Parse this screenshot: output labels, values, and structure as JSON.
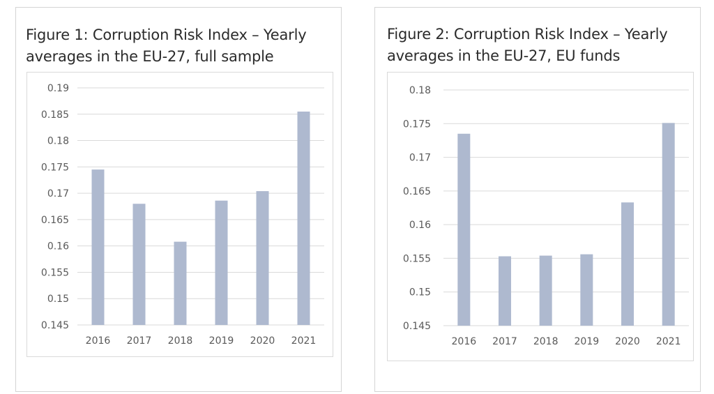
{
  "chart_data": [
    {
      "type": "bar",
      "title": "Figure 1: Corruption Risk Index – Yearly averages in the EU-27, full sample",
      "categories": [
        "2016",
        "2017",
        "2018",
        "2019",
        "2020",
        "2021"
      ],
      "values": [
        0.1745,
        0.168,
        0.1608,
        0.1686,
        0.1704,
        0.1855
      ],
      "ylim": [
        0.145,
        0.19
      ],
      "yticks": [
        "0.19",
        "0.185",
        "0.18",
        "0.175",
        "0.17",
        "0.165",
        "0.16",
        "0.155",
        "0.15",
        "0.145"
      ],
      "ytick_values": [
        0.19,
        0.185,
        0.18,
        0.175,
        0.17,
        0.165,
        0.16,
        0.155,
        0.15,
        0.145
      ],
      "grid": true,
      "bar_color": "#aeb9cf",
      "grid_color": "#d9d9d9"
    },
    {
      "type": "bar",
      "title": "Figure 2: Corruption Risk Index – Yearly averages in the EU-27, EU funds",
      "categories": [
        "2016",
        "2017",
        "2018",
        "2019",
        "2020",
        "2021"
      ],
      "values": [
        0.1735,
        0.1553,
        0.1554,
        0.1556,
        0.1633,
        0.1751
      ],
      "ylim": [
        0.145,
        0.18
      ],
      "yticks": [
        "0.18",
        "0.175",
        "0.17",
        "0.165",
        "0.16",
        "0.155",
        "0.15",
        "0.145"
      ],
      "ytick_values": [
        0.18,
        0.175,
        0.17,
        0.165,
        0.16,
        0.155,
        0.15,
        0.145
      ],
      "grid": true,
      "bar_color": "#aeb9cf",
      "grid_color": "#d9d9d9"
    }
  ]
}
